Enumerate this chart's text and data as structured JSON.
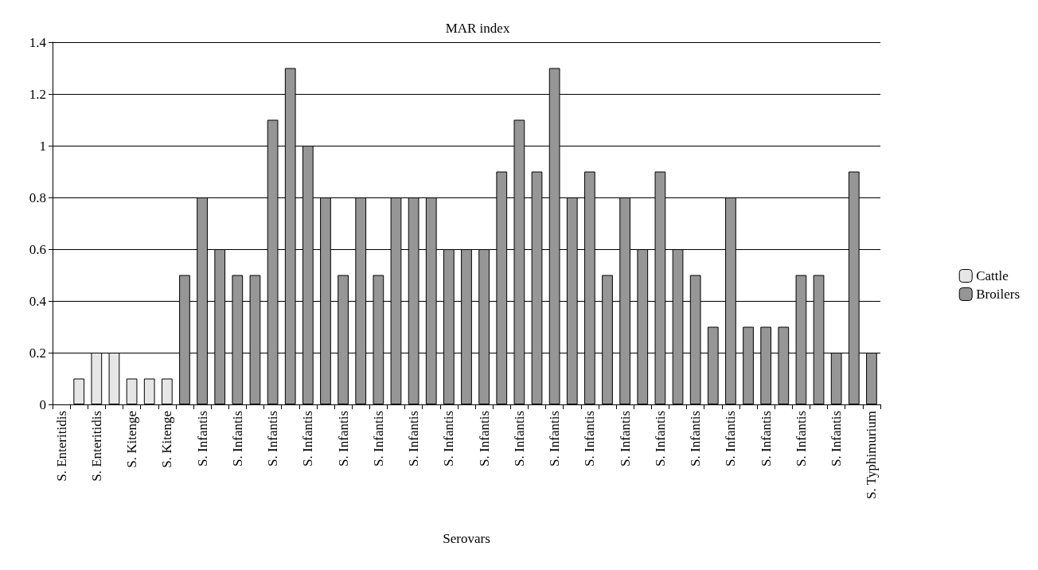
{
  "chart_data": {
    "type": "bar",
    "title": "MAR index",
    "xlabel": "Serovars",
    "categories": [
      "S. Enteritidis",
      null,
      "S. Enteritidis",
      null,
      "S. Kitenge",
      null,
      "S. Kitenge",
      null,
      "S. Infantis",
      null,
      "S. Infantis",
      null,
      "S. Infantis",
      null,
      "S. Infantis",
      null,
      "S. Infantis",
      null,
      "S. Infantis",
      null,
      "S. Infantis",
      null,
      "S. Infantis",
      null,
      "S. Infantis",
      null,
      "S. Infantis",
      null,
      "S. Infantis",
      null,
      "S. Infantis",
      null,
      "S. Infantis",
      null,
      "S. Infantis",
      null,
      "S. Infantis",
      null,
      "S. Infantis",
      null,
      "S. Infantis",
      null,
      "S. Infantis",
      null,
      "S. Infantis",
      null,
      "S. Typhimurium"
    ],
    "series": [
      {
        "name": "Cattle",
        "color": "#e6e6e6",
        "values": [
          null,
          0.1,
          0.2,
          0.2,
          0.1,
          0.1,
          0.1,
          null,
          null,
          null,
          null,
          null,
          null,
          null,
          null,
          null,
          null,
          null,
          null,
          null,
          null,
          null,
          null,
          null,
          null,
          null,
          null,
          null,
          null,
          null,
          null,
          null,
          null,
          null,
          null,
          null,
          null,
          null,
          null,
          null,
          null,
          null,
          null,
          null,
          null,
          null,
          null
        ]
      },
      {
        "name": "Broilers",
        "color": "#969696",
        "values": [
          null,
          null,
          null,
          null,
          null,
          null,
          null,
          0.5,
          0.8,
          0.6,
          0.5,
          0.5,
          1.1,
          1.3,
          1.0,
          0.8,
          0.5,
          0.8,
          0.5,
          0.8,
          0.8,
          0.8,
          0.6,
          0.6,
          0.6,
          0.9,
          1.1,
          0.9,
          1.3,
          0.8,
          0.9,
          0.5,
          0.8,
          0.6,
          0.9,
          0.6,
          0.5,
          0.3,
          0.8,
          0.3,
          0.3,
          0.3,
          0.5,
          0.5,
          0.2,
          0.9,
          0.2
        ]
      }
    ],
    "ylim": [
      0,
      1.4
    ],
    "yticks": [
      0,
      0.2,
      0.4,
      0.6,
      0.8,
      1,
      1.2,
      1.4
    ],
    "grid": "y",
    "legend": "right"
  }
}
